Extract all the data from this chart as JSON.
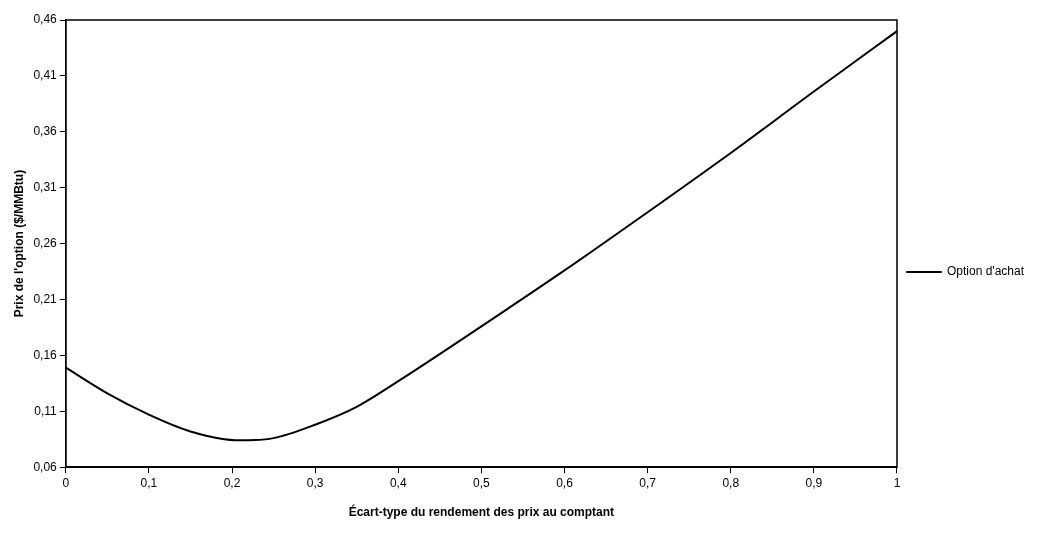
{
  "chart_data": {
    "type": "line",
    "xlabel": "Écart-type du rendement des prix au comptant",
    "ylabel": "Prix de l'option ($/MMBtu)",
    "x": [
      0,
      0.05,
      0.1,
      0.15,
      0.21,
      0.25,
      0.3,
      0.35,
      0.4,
      0.5,
      0.6,
      0.7,
      0.8,
      0.9,
      1
    ],
    "series": [
      {
        "name": "Option d'achat",
        "color": "#000000",
        "values": [
          0.149,
          0.126,
          0.107,
          0.092,
          0.084,
          0.086,
          0.098,
          0.114,
          0.137,
          0.186,
          0.236,
          0.288,
          0.341,
          0.396,
          0.45
        ]
      }
    ],
    "xlim": [
      0,
      1
    ],
    "xticks": [
      {
        "value": 0,
        "label": "0"
      },
      {
        "value": 0.1,
        "label": "0,1"
      },
      {
        "value": 0.2,
        "label": "0,2"
      },
      {
        "value": 0.3,
        "label": "0,3"
      },
      {
        "value": 0.4,
        "label": "0,4"
      },
      {
        "value": 0.5,
        "label": "0,5"
      },
      {
        "value": 0.6,
        "label": "0,6"
      },
      {
        "value": 0.7,
        "label": "0,7"
      },
      {
        "value": 0.8,
        "label": "0,8"
      },
      {
        "value": 0.9,
        "label": "0,9"
      },
      {
        "value": 1,
        "label": "1"
      }
    ],
    "ylim": [
      0.06,
      0.46
    ],
    "yticks": [
      {
        "value": 0.06,
        "label": "0,06"
      },
      {
        "value": 0.11,
        "label": "0,11"
      },
      {
        "value": 0.16,
        "label": "0,16"
      },
      {
        "value": 0.21,
        "label": "0,21"
      },
      {
        "value": 0.26,
        "label": "0,26"
      },
      {
        "value": 0.31,
        "label": "0,31"
      },
      {
        "value": 0.36,
        "label": "0,36"
      },
      {
        "value": 0.41,
        "label": "0,41"
      },
      {
        "value": 0.46,
        "label": "0,46"
      }
    ],
    "grid": false,
    "legend": "right",
    "marker": "none",
    "line_style": "solid"
  }
}
